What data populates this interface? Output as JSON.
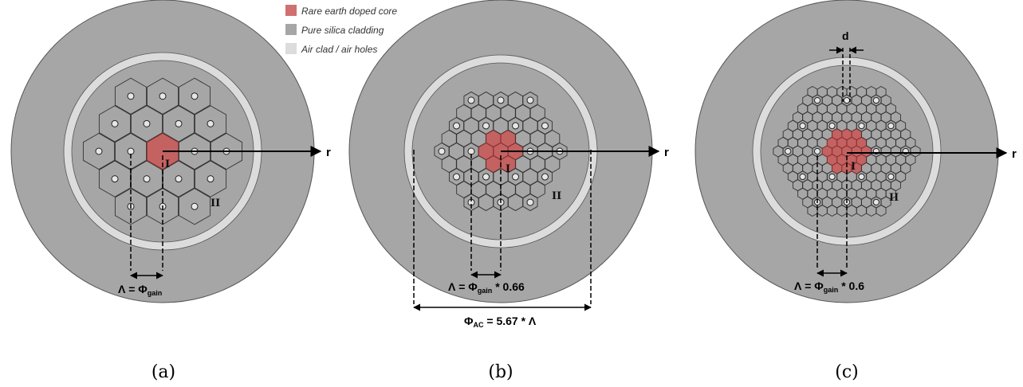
{
  "legend": {
    "items": [
      {
        "label": "Rare earth doped core",
        "color": "#d07070"
      },
      {
        "label": "Pure silica cladding",
        "color": "#a6a6a6"
      },
      {
        "label": "Air clad / air holes",
        "color": "#dcdcdc"
      }
    ]
  },
  "colors": {
    "outer_cladding": "#a6a6a6",
    "air_clad": "#dcdcdc",
    "inner_cladding": "#a6a6a6",
    "hex_cell": "#a6a6a6",
    "hex_stroke": "#333333",
    "core": "#c46262",
    "core_stroke": "#8a3030",
    "air_hole": "#e6e6e6"
  },
  "panels": [
    {
      "id": "a",
      "caption": "(a)",
      "axis_label": "r",
      "region_core": "I",
      "region_clad": "II",
      "pitch_label": "Λ = Φ",
      "pitch_sub": "gain",
      "pitch_suffix": ""
    },
    {
      "id": "b",
      "caption": "(b)",
      "axis_label": "r",
      "region_core": "I",
      "region_clad": "II",
      "pitch_label": "Λ = Φ",
      "pitch_sub": "gain",
      "pitch_suffix": " * 0.66",
      "ac_label": "Φ",
      "ac_sub": "AC",
      "ac_suffix": " = 5.67 * Λ"
    },
    {
      "id": "c",
      "caption": "(c)",
      "axis_label": "r",
      "region_core": "I",
      "region_clad": "II",
      "pitch_label": "Λ = Φ",
      "pitch_sub": "gain",
      "pitch_suffix": " * 0.6",
      "hole_label": "d"
    }
  ]
}
